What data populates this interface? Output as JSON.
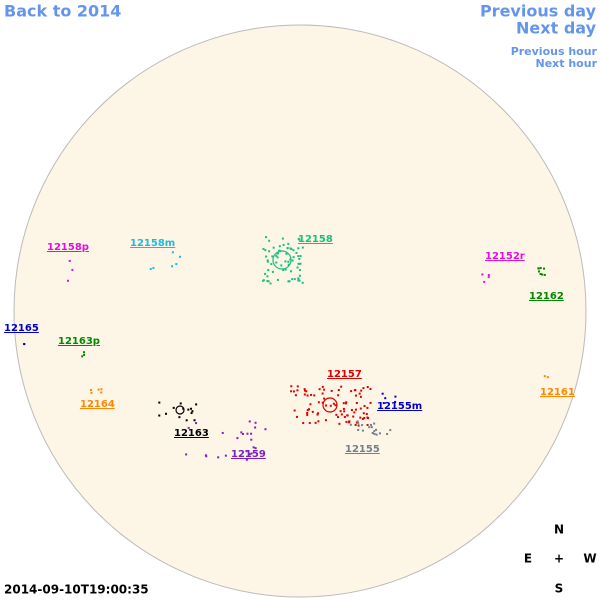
{
  "nav": {
    "back": "Back to 2014",
    "previous_day": "Previous day",
    "next_day": "Next day",
    "previous_hour": "Previous hour",
    "next_hour": "Next hour"
  },
  "regions": [
    {
      "label": "12158p",
      "color": "#e010e0"
    },
    {
      "label": "12158m",
      "color": "#20b8e0"
    },
    {
      "label": "12158",
      "color": "#18c080"
    },
    {
      "label": "12152r",
      "color": "#e010e0"
    },
    {
      "label": "12162",
      "color": "#008800"
    },
    {
      "label": "12165",
      "color": "#0000cc"
    },
    {
      "label": "12163p",
      "color": "#008800"
    },
    {
      "label": "12157",
      "color": "#dd0000"
    },
    {
      "label": "12164",
      "color": "#ff8800"
    },
    {
      "label": "12161",
      "color": "#ff8800"
    },
    {
      "label": "12155m",
      "color": "#0000cc"
    },
    {
      "label": "12163",
      "color": "#000000"
    },
    {
      "label": "12159",
      "color": "#8020c0"
    },
    {
      "label": "12155",
      "color": "#708090"
    }
  ],
  "compass": {
    "north": "N",
    "east": "E",
    "center": "+",
    "west": "W",
    "south": "S"
  },
  "timestamp": "2014-09-10T19:00:35"
}
